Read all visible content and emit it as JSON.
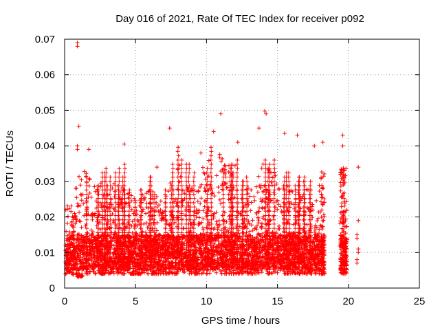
{
  "chart_data": {
    "type": "scatter",
    "title": "Day 016 of 2021, Rate Of TEC Index for receiver p092",
    "xlabel": "GPS time / hours",
    "ylabel": "ROTI / TECUs",
    "xlim": [
      0,
      25
    ],
    "ylim": [
      0,
      0.07
    ],
    "xticks": [
      "0",
      "5",
      "10",
      "15",
      "20",
      "25"
    ],
    "yticks": [
      "0",
      "0.01",
      "0.02",
      "0.03",
      "0.04",
      "0.05",
      "0.06",
      "0.07"
    ],
    "grid": true,
    "marker": "plus",
    "color": "#ff0000",
    "sample_points": [
      [
        0.9,
        0.069
      ],
      [
        0.9,
        0.068
      ],
      [
        1.0,
        0.0455
      ],
      [
        0.9,
        0.04
      ],
      [
        0.9,
        0.039
      ],
      [
        1.7,
        0.039
      ],
      [
        4.2,
        0.0405
      ],
      [
        7.4,
        0.045
      ],
      [
        10.5,
        0.044
      ],
      [
        11.0,
        0.049
      ],
      [
        13.7,
        0.045
      ],
      [
        14.1,
        0.0498
      ],
      [
        14.2,
        0.049
      ],
      [
        15.5,
        0.0435
      ],
      [
        16.4,
        0.043
      ],
      [
        17.6,
        0.04
      ],
      [
        18.2,
        0.041
      ],
      [
        19.6,
        0.043
      ],
      [
        19.6,
        0.04
      ],
      [
        20.7,
        0.034
      ],
      [
        20.7,
        0.019
      ],
      [
        20.6,
        0.015
      ],
      [
        20.6,
        0.014
      ],
      [
        20.7,
        0.011
      ],
      [
        20.7,
        0.01
      ],
      [
        20.6,
        0.008
      ],
      [
        20.6,
        0.007
      ],
      [
        9.6,
        0.038
      ],
      [
        12.2,
        0.041
      ],
      [
        6.5,
        0.034
      ]
    ],
    "density_profile": {
      "x": [
        0.0,
        0.5,
        1.0,
        2.0,
        3.0,
        4.0,
        5.0,
        6.0,
        7.0,
        8.0,
        9.0,
        10.0,
        11.0,
        12.0,
        13.0,
        14.0,
        15.0,
        16.0,
        17.0,
        17.5,
        18.0,
        18.3,
        19.4,
        19.9
      ],
      "typical_max": [
        0.025,
        0.023,
        0.035,
        0.03,
        0.03,
        0.032,
        0.025,
        0.028,
        0.025,
        0.035,
        0.03,
        0.037,
        0.038,
        0.035,
        0.028,
        0.035,
        0.032,
        0.03,
        0.028,
        0.03,
        0.03,
        0.028,
        0.03,
        0.03
      ],
      "typical_min": [
        0.004,
        0.004,
        0.003,
        0.004,
        0.004,
        0.004,
        0.004,
        0.004,
        0.004,
        0.004,
        0.004,
        0.004,
        0.004,
        0.004,
        0.004,
        0.004,
        0.004,
        0.004,
        0.004,
        0.004,
        0.004,
        0.004,
        0.005,
        0.005
      ],
      "core_level": 0.01
    },
    "data_gaps": [
      [
        18.3,
        19.4
      ],
      [
        19.9,
        20.5
      ],
      [
        20.9,
        25.0
      ]
    ]
  }
}
